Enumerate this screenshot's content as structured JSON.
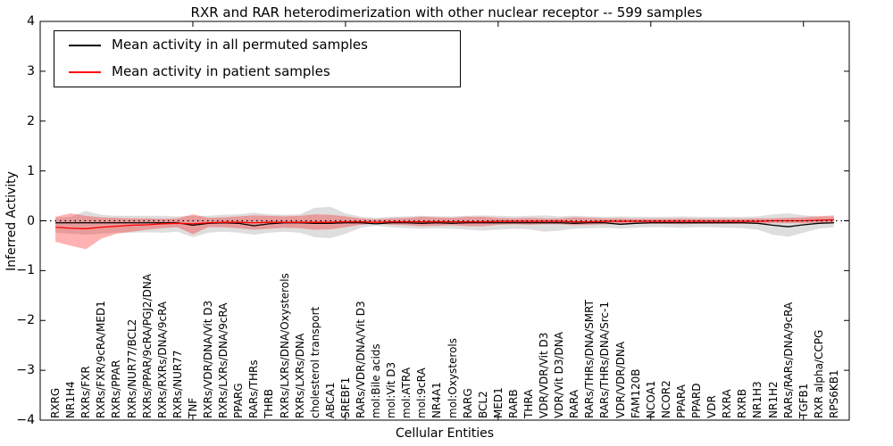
{
  "chart_data": {
    "type": "line",
    "title": "RXR and RAR heterodimerization with other nuclear receptor -- 599 samples",
    "xlabel": "Cellular Entities",
    "ylabel": "Inferred Activity",
    "ylim": [
      -4,
      4
    ],
    "ytick_values": [
      4,
      3,
      2,
      1,
      0,
      -1,
      -2,
      -3,
      -4
    ],
    "ytick_labels": [
      "4",
      "3",
      "2",
      "1",
      "0",
      "−1",
      "−2",
      "−3",
      "−4"
    ],
    "xlim": [
      0,
      53
    ],
    "xtick_positions": [
      10,
      20,
      30,
      40,
      50
    ],
    "grid": false,
    "legend_position": "upper left",
    "categories": [
      "RXRG",
      "NR1H4",
      "RXRs/FXR",
      "RXRs/FXR/9cRA/MED1",
      "RXRs/PPAR",
      "RXRs/NUR77/BCL2",
      "RXRs/PPAR/9cRA/PGJ2/DNA",
      "RXRs/RXRs/DNA/9cRA",
      "RXRs/NUR77",
      "TNF",
      "RXRs/VDR/DNA/Vit D3",
      "RXRs/LXRs/DNA/9cRA",
      "PPARG",
      "RARs/THRs",
      "THRB",
      "RXRs/LXRs/DNA/Oxysterols",
      "RXRs/LXRs/DNA",
      "cholesterol transport",
      "ABCA1",
      "SREBF1",
      "RARs/VDR/DNA/Vit D3",
      "mol:Bile acids",
      "mol:Vit D3",
      "mol:ATRA",
      "mol:9cRA",
      "NR4A1",
      "mol:Oxysterols",
      "RARG",
      "BCL2",
      "MED1",
      "RARB",
      "THRA",
      "VDR/VDR/Vit D3",
      "VDR/Vit D3/DNA",
      "RARA",
      "RARs/THRs/DNA/SMRT",
      "RARs/THRs/DNA/Src-1",
      "VDR/VDR/DNA",
      "FAM120B",
      "NCOA1",
      "NCOR2",
      "PPARA",
      "PPARD",
      "VDR",
      "RXRA",
      "RXRB",
      "NR1H3",
      "NR1H2",
      "RARs/RARs/DNA/9cRA",
      "TGFB1",
      "RXR alpha/CCPG",
      "RPS6KB1"
    ],
    "series": [
      {
        "name": "Mean activity in all permuted samples",
        "color": "#000000",
        "style": "solid",
        "values": [
          -0.04,
          -0.04,
          -0.04,
          -0.04,
          -0.04,
          -0.04,
          -0.04,
          -0.04,
          -0.04,
          -0.09,
          -0.05,
          -0.04,
          -0.05,
          -0.1,
          -0.06,
          -0.04,
          -0.04,
          -0.05,
          -0.05,
          -0.04,
          -0.04,
          -0.06,
          -0.04,
          -0.04,
          -0.05,
          -0.04,
          -0.05,
          -0.04,
          -0.04,
          -0.04,
          -0.04,
          -0.04,
          -0.04,
          -0.04,
          -0.05,
          -0.04,
          -0.04,
          -0.07,
          -0.05,
          -0.04,
          -0.04,
          -0.04,
          -0.04,
          -0.04,
          -0.04,
          -0.04,
          -0.05,
          -0.09,
          -0.12,
          -0.08,
          -0.05,
          -0.04
        ]
      },
      {
        "name": "Mean activity in patient samples",
        "color": "#ff0000",
        "style": "solid",
        "values": [
          -0.13,
          -0.15,
          -0.16,
          -0.13,
          -0.11,
          -0.09,
          -0.08,
          -0.06,
          -0.05,
          -0.06,
          -0.04,
          -0.03,
          -0.03,
          -0.04,
          -0.03,
          -0.03,
          -0.03,
          -0.03,
          -0.03,
          -0.02,
          -0.02,
          -0.03,
          -0.02,
          -0.02,
          -0.02,
          -0.02,
          -0.02,
          -0.02,
          -0.02,
          -0.01,
          -0.01,
          -0.01,
          -0.01,
          -0.01,
          -0.02,
          -0.02,
          -0.01,
          -0.01,
          -0.01,
          -0.01,
          -0.01,
          -0.01,
          -0.01,
          -0.01,
          -0.01,
          -0.01,
          -0.01,
          0.0,
          0.0,
          0.0,
          0.01,
          0.02
        ]
      }
    ],
    "bands": [
      {
        "name": "permuted samples spread",
        "color": "rgba(0,0,0,0.13)",
        "upper": [
          0.06,
          0.08,
          0.2,
          0.12,
          0.1,
          0.1,
          0.1,
          0.1,
          0.09,
          0.1,
          0.1,
          0.12,
          0.13,
          0.16,
          0.13,
          0.12,
          0.13,
          0.26,
          0.28,
          0.15,
          0.08,
          0.06,
          0.08,
          0.09,
          0.1,
          0.09,
          0.09,
          0.1,
          0.11,
          0.1,
          0.09,
          0.1,
          0.11,
          0.09,
          0.1,
          0.09,
          0.08,
          0.09,
          0.08,
          0.08,
          0.08,
          0.09,
          0.08,
          0.08,
          0.08,
          0.08,
          0.09,
          0.13,
          0.15,
          0.11,
          0.09,
          0.08
        ],
        "lower": [
          -0.24,
          -0.26,
          -0.28,
          -0.26,
          -0.24,
          -0.24,
          -0.23,
          -0.24,
          -0.22,
          -0.33,
          -0.24,
          -0.22,
          -0.24,
          -0.28,
          -0.24,
          -0.22,
          -0.24,
          -0.33,
          -0.35,
          -0.26,
          -0.14,
          -0.1,
          -0.13,
          -0.15,
          -0.16,
          -0.15,
          -0.16,
          -0.18,
          -0.2,
          -0.18,
          -0.16,
          -0.17,
          -0.22,
          -0.2,
          -0.16,
          -0.15,
          -0.14,
          -0.16,
          -0.14,
          -0.13,
          -0.13,
          -0.14,
          -0.13,
          -0.13,
          -0.14,
          -0.15,
          -0.18,
          -0.28,
          -0.32,
          -0.24,
          -0.16,
          -0.13
        ]
      },
      {
        "name": "patient samples spread",
        "color": "rgba(255,0,0,0.30)",
        "upper": [
          0.08,
          0.15,
          0.1,
          0.07,
          0.06,
          0.05,
          0.05,
          0.04,
          0.05,
          0.13,
          0.06,
          0.07,
          0.09,
          0.11,
          0.1,
          0.09,
          0.1,
          0.13,
          0.12,
          0.09,
          0.05,
          0.03,
          0.05,
          0.06,
          0.08,
          0.07,
          0.06,
          0.08,
          0.08,
          0.06,
          0.05,
          0.06,
          0.05,
          0.05,
          0.07,
          0.06,
          0.05,
          0.05,
          0.04,
          0.04,
          0.04,
          0.05,
          0.04,
          0.04,
          0.04,
          0.04,
          0.05,
          0.05,
          0.06,
          0.07,
          0.09,
          0.11
        ],
        "lower": [
          -0.42,
          -0.5,
          -0.57,
          -0.36,
          -0.26,
          -0.22,
          -0.18,
          -0.15,
          -0.13,
          -0.27,
          -0.13,
          -0.13,
          -0.15,
          -0.18,
          -0.16,
          -0.14,
          -0.15,
          -0.18,
          -0.17,
          -0.13,
          -0.08,
          -0.06,
          -0.08,
          -0.09,
          -0.11,
          -0.1,
          -0.09,
          -0.11,
          -0.11,
          -0.08,
          -0.07,
          -0.08,
          -0.07,
          -0.07,
          -0.09,
          -0.08,
          -0.07,
          -0.07,
          -0.06,
          -0.06,
          -0.06,
          -0.07,
          -0.06,
          -0.06,
          -0.06,
          -0.06,
          -0.06,
          -0.05,
          -0.05,
          -0.05,
          -0.04,
          -0.04
        ]
      }
    ],
    "reference_line": {
      "y": 0.0,
      "color": "#000000",
      "style": "dotted"
    }
  }
}
